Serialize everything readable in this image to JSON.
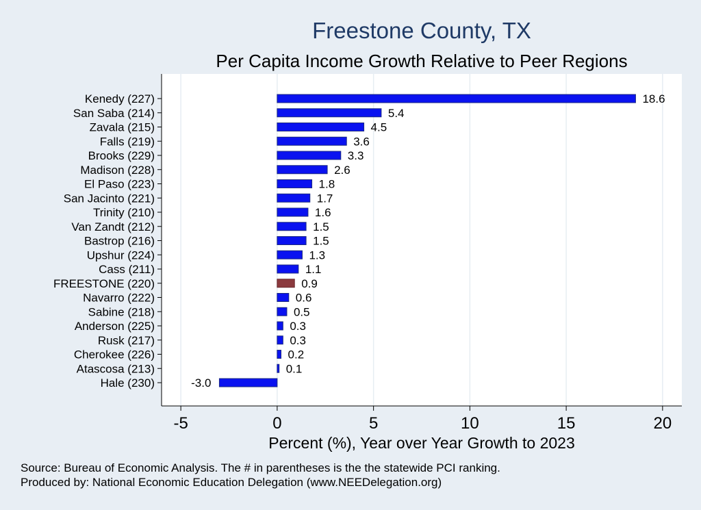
{
  "chart_data": {
    "type": "bar",
    "orientation": "horizontal",
    "title": "Freestone County, TX",
    "subtitle": "Per Capita Income Growth Relative to Peer Regions",
    "xlabel": "Percent (%), Year over Year Growth to 2023",
    "ylabel": "",
    "xlim": [
      -6,
      21
    ],
    "xticks": [
      -5,
      0,
      5,
      10,
      15,
      20
    ],
    "xtick_labels": [
      "-5",
      "0",
      "5",
      "10",
      "15",
      "20"
    ],
    "grid": true,
    "categories": [
      "Kenedy (227)",
      "San Saba (214)",
      "Zavala (215)",
      "Falls (219)",
      "Brooks (229)",
      "Madison (228)",
      "El Paso (223)",
      "San Jacinto (221)",
      "Trinity (210)",
      "Van Zandt (212)",
      "Bastrop (216)",
      "Upshur (224)",
      "Cass (211)",
      "FREESTONE (220)",
      "Navarro (222)",
      "Sabine (218)",
      "Anderson (225)",
      "Rusk (217)",
      "Cherokee (226)",
      "Atascosa (213)",
      "Hale (230)"
    ],
    "values": [
      18.6,
      5.4,
      4.5,
      3.6,
      3.3,
      2.6,
      1.8,
      1.7,
      1.6,
      1.5,
      1.5,
      1.3,
      1.1,
      0.9,
      0.6,
      0.5,
      0.3,
      0.3,
      0.2,
      0.1,
      -3.0
    ],
    "value_labels": [
      "18.6",
      "5.4",
      "4.5",
      "3.6",
      "3.3",
      "2.6",
      "1.8",
      "1.7",
      "1.6",
      "1.5",
      "1.5",
      "1.3",
      "1.1",
      "0.9",
      "0.6",
      "0.5",
      "0.3",
      "0.3",
      "0.2",
      "0.1",
      "-3.0"
    ],
    "highlight_category": "FREESTONE (220)",
    "colors": {
      "bar": "#0a12f0",
      "bar_edge": "#1c2a80",
      "highlight": "#8b3a3e",
      "plot_background": "#ffffff",
      "page_background": "#e8eef4",
      "grid": "#e6edf2",
      "title": "#1f3a66"
    }
  },
  "footer": {
    "source_line": "Source: Bureau of Economic Analysis. The # in parentheses is the the statewide PCI ranking.",
    "credit_line": "Produced by: National Economic Education Delegation (www.NEEDelegation.org)"
  }
}
